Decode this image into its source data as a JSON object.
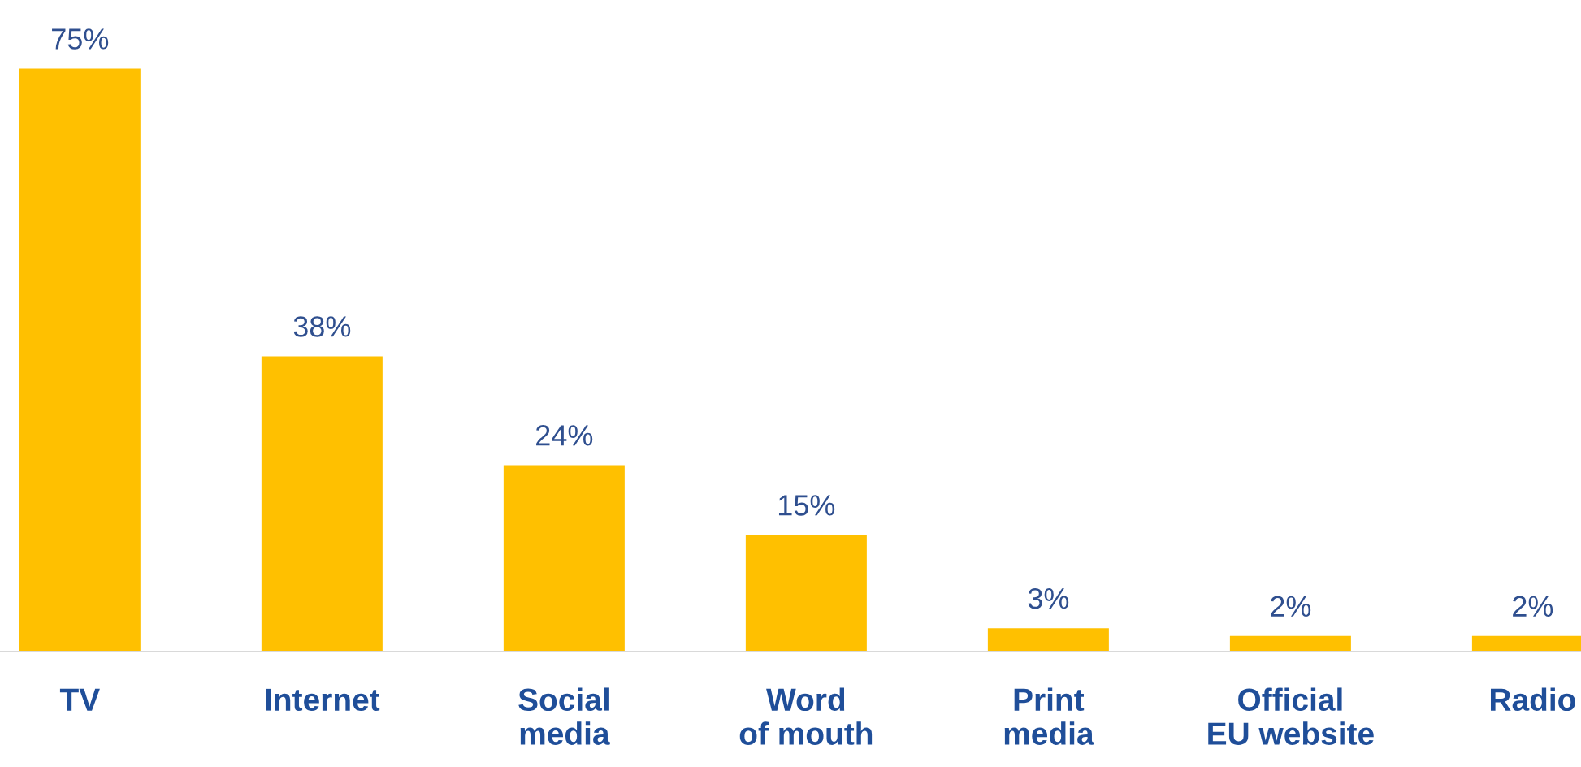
{
  "chart_data": {
    "type": "bar",
    "categories": [
      "TV",
      "Internet",
      "Social\nmedia",
      "Word\nof mouth",
      "Print\nmedia",
      "Official\nEU website",
      "Radio"
    ],
    "values": [
      75,
      38,
      24,
      15,
      3,
      2,
      2
    ],
    "value_labels": [
      "75%",
      "38%",
      "24%",
      "15%",
      "3%",
      "2%",
      "2%"
    ],
    "color": "#ffc000",
    "grid": false,
    "legend": false
  }
}
